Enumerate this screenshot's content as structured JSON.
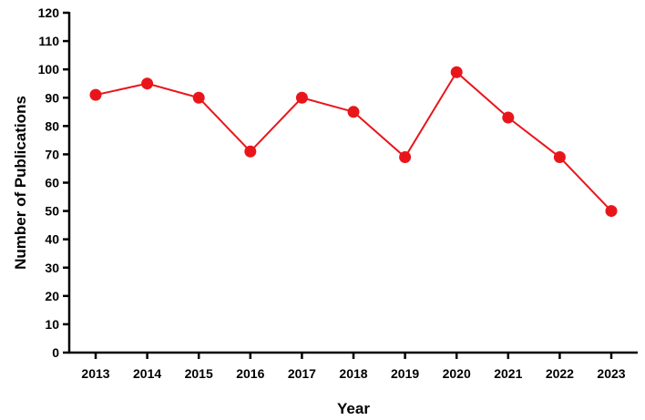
{
  "chart_data": {
    "type": "line",
    "title": "",
    "xlabel": "Year",
    "ylabel": "Number of Publications",
    "categories": [
      "2013",
      "2014",
      "2015",
      "2016",
      "2017",
      "2018",
      "2019",
      "2020",
      "2021",
      "2022",
      "2023"
    ],
    "series": [
      {
        "values": [
          91,
          95,
          90,
          71,
          90,
          85,
          69,
          99,
          83,
          69,
          50
        ]
      }
    ],
    "ylim": [
      0,
      120
    ],
    "yticks": [
      0,
      10,
      20,
      30,
      40,
      50,
      60,
      70,
      80,
      90,
      100,
      110,
      120
    ],
    "grid": false,
    "legend": "none",
    "color": "#e8161b"
  }
}
